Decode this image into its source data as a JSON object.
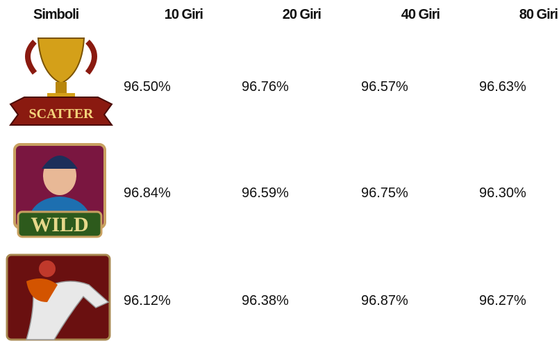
{
  "table": {
    "headers": [
      "Simboli",
      "10 Giri",
      "20 Giri",
      "40 Giri",
      "80 Giri"
    ],
    "rows": [
      {
        "symbol": "SCATTER",
        "values": [
          "96.50%",
          "96.76%",
          "96.57%",
          "96.63%"
        ]
      },
      {
        "symbol": "WILD",
        "values": [
          "96.84%",
          "96.59%",
          "96.75%",
          "96.30%"
        ]
      },
      {
        "values": [
          "96.12%",
          "96.38%",
          "96.87%",
          "96.27%"
        ]
      }
    ]
  }
}
